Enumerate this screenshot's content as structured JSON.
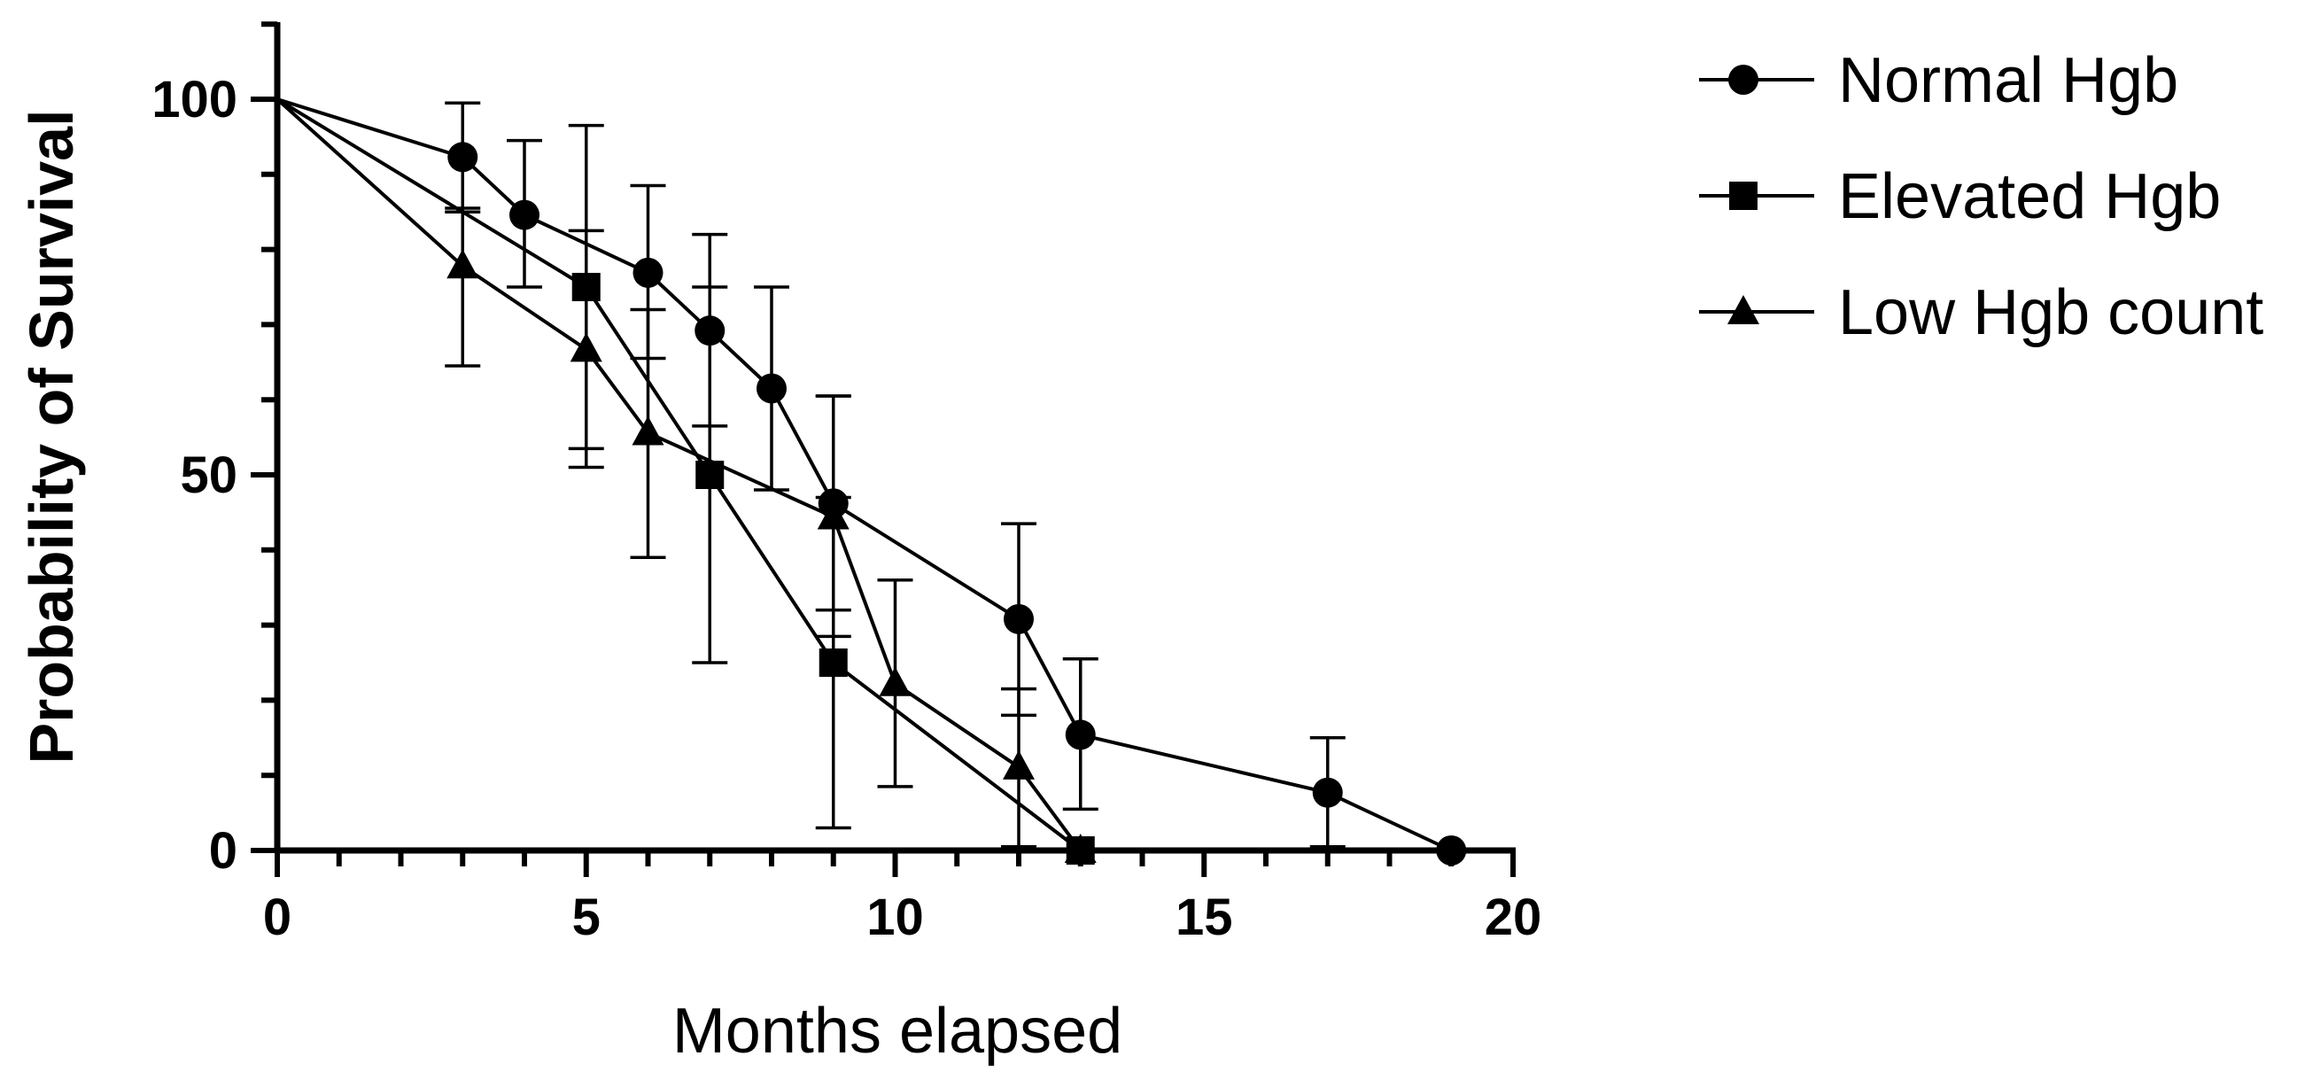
{
  "chart_data": {
    "type": "line",
    "title": "",
    "xlabel": "Months elapsed",
    "ylabel": "Probability of Survival",
    "xlim": [
      0,
      20
    ],
    "ylim": [
      0,
      110
    ],
    "xticks": [
      0,
      5,
      10,
      15,
      20
    ],
    "xtick_labels": [
      "0",
      "5",
      "10",
      "15",
      "20"
    ],
    "yticks": [
      0,
      50,
      100
    ],
    "ytick_labels": [
      "0",
      "50",
      "100"
    ],
    "grid": false,
    "legend_position": "top-right",
    "series": [
      {
        "name": "Normal Hgb",
        "marker": "circle",
        "points": [
          {
            "x": 0,
            "y": 100
          },
          {
            "x": 3,
            "y": 92.3,
            "err_hi": 99.5,
            "err_lo": 85
          },
          {
            "x": 4,
            "y": 84.6,
            "err_hi": 94.5,
            "err_lo": 75
          },
          {
            "x": 6,
            "y": 76.9,
            "err_hi": 88.5,
            "err_lo": 65.5
          },
          {
            "x": 7,
            "y": 69.2,
            "err_hi": 82,
            "err_lo": 56.5
          },
          {
            "x": 8,
            "y": 61.5,
            "err_hi": 75,
            "err_lo": 48
          },
          {
            "x": 9,
            "y": 46.2,
            "err_hi": 60.5,
            "err_lo": 32
          },
          {
            "x": 12,
            "y": 30.8,
            "err_hi": 43.5,
            "err_lo": 18
          },
          {
            "x": 13,
            "y": 15.4,
            "err_hi": 25.5,
            "err_lo": 5.5
          },
          {
            "x": 17,
            "y": 7.7,
            "err_hi": 15,
            "err_lo": 0.5
          },
          {
            "x": 19,
            "y": 0
          }
        ]
      },
      {
        "name": "Elevated Hgb",
        "marker": "square",
        "points": [
          {
            "x": 0,
            "y": 100
          },
          {
            "x": 5,
            "y": 75,
            "err_hi": 96.5,
            "err_lo": 53.5
          },
          {
            "x": 7,
            "y": 50,
            "err_hi": 75,
            "err_lo": 25
          },
          {
            "x": 9,
            "y": 25,
            "err_hi": 47,
            "err_lo": 3
          },
          {
            "x": 13,
            "y": 0
          }
        ]
      },
      {
        "name": "Low Hgb count",
        "marker": "triangle",
        "points": [
          {
            "x": 0,
            "y": 100
          },
          {
            "x": 3,
            "y": 77.8,
            "err_hi": 85.5,
            "err_lo": 64.5
          },
          {
            "x": 5,
            "y": 66.7,
            "err_hi": 82.5,
            "err_lo": 51
          },
          {
            "x": 6,
            "y": 55.6,
            "err_hi": 72,
            "err_lo": 39
          },
          {
            "x": 9,
            "y": 44.4,
            "err_hi": 60.5,
            "err_lo": 28.5
          },
          {
            "x": 10,
            "y": 22.2,
            "err_hi": 36,
            "err_lo": 8.5
          },
          {
            "x": 12,
            "y": 11.1,
            "err_hi": 21.5,
            "err_lo": 0.5
          },
          {
            "x": 13,
            "y": 0
          }
        ]
      }
    ]
  }
}
